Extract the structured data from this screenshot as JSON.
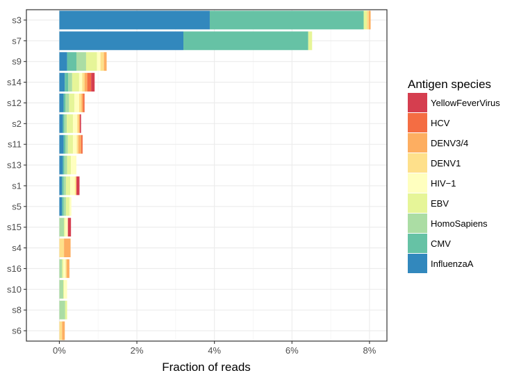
{
  "chart_data": {
    "type": "bar",
    "orientation": "horizontal",
    "stacked": true,
    "xlabel": "Fraction of reads",
    "ylabel": "",
    "xlim": [
      -0.0085,
      0.0845
    ],
    "x_ticks": [
      0,
      0.02,
      0.04,
      0.06,
      0.08
    ],
    "x_tick_labels": [
      "0%",
      "2%",
      "4%",
      "6%",
      "8%"
    ],
    "grid": true,
    "legend_title": "Antigen species",
    "legend_position": "right",
    "categories": [
      "s3",
      "s7",
      "s9",
      "s14",
      "s12",
      "s2",
      "s11",
      "s13",
      "s1",
      "s5",
      "s15",
      "s4",
      "s16",
      "s10",
      "s8",
      "s6"
    ],
    "series": [
      {
        "name": "InfluenzaA",
        "color": "#3288bd",
        "values": [
          0.0388,
          0.032,
          0.002,
          0.0014,
          0.0011,
          0.0009,
          0.0011,
          0.0009,
          0.0007,
          0.0007,
          0.0,
          0.0,
          0.0,
          0.0,
          0.0,
          0.0
        ]
      },
      {
        "name": "CMV",
        "color": "#66c2a5",
        "values": [
          0.0397,
          0.0322,
          0.0024,
          0.0009,
          0.0005,
          0.0004,
          0.0005,
          0.0004,
          0.0004,
          0.0004,
          0.0,
          0.0,
          0.0,
          0.0,
          0.0,
          0.0
        ]
      },
      {
        "name": "HomoSapiens",
        "color": "#abdda4",
        "values": [
          0.0,
          0.0,
          0.0025,
          0.001,
          0.0009,
          0.0006,
          0.0006,
          0.0007,
          0.0006,
          0.0006,
          0.0012,
          0.0,
          0.0007,
          0.001,
          0.0015,
          0.0
        ]
      },
      {
        "name": "EBV",
        "color": "#e6f598",
        "values": [
          0.0008,
          0.001,
          0.0028,
          0.0018,
          0.0014,
          0.0016,
          0.0013,
          0.001,
          0.0011,
          0.0009,
          0.0003,
          0.0,
          0.0003,
          0.0002,
          0.0005,
          0.0
        ]
      },
      {
        "name": "HIV-1",
        "color": "#ffffbf",
        "values": [
          0.0,
          0.0,
          0.0009,
          0.0008,
          0.0012,
          0.0011,
          0.001,
          0.0014,
          0.0012,
          0.0005,
          0.0007,
          0.0,
          0.0006,
          0.0008,
          0.0,
          0.0
        ]
      },
      {
        "name": "DENV1",
        "color": "#fee08b",
        "values": [
          0.0005,
          0.0,
          0.0009,
          0.0006,
          0.0006,
          0.0004,
          0.0004,
          0.0,
          0.0004,
          0.0,
          0.0,
          0.0012,
          0.0003,
          0.0,
          0.0,
          0.0007
        ]
      },
      {
        "name": "DENV3/4",
        "color": "#fdae61",
        "values": [
          0.0005,
          0.0,
          0.0007,
          0.0007,
          0.0004,
          0.0003,
          0.0007,
          0.0,
          0.0,
          0.0,
          0.0,
          0.0017,
          0.0007,
          0.0,
          0.0,
          0.0007
        ]
      },
      {
        "name": "HCV",
        "color": "#f46d43",
        "values": [
          0.0,
          0.0,
          0.0,
          0.001,
          0.0004,
          0.0,
          0.0004,
          0.0,
          0.0,
          0.0,
          0.0,
          0.0,
          0.0,
          0.0,
          0.0,
          0.0
        ]
      },
      {
        "name": "YellowFeverVirus",
        "color": "#d53e4f",
        "values": [
          0.0,
          0.0,
          0.0,
          0.0009,
          0.0,
          0.0003,
          0.0,
          0.0,
          0.0008,
          0.0,
          0.0008,
          0.0,
          0.0,
          0.0,
          0.0,
          0.0
        ]
      }
    ],
    "legend_order": [
      "YellowFeverVirus",
      "HCV",
      "DENV3/4",
      "DENV1",
      "HIV−1",
      "EBV",
      "HomoSapiens",
      "CMV",
      "InfluenzaA"
    ]
  }
}
